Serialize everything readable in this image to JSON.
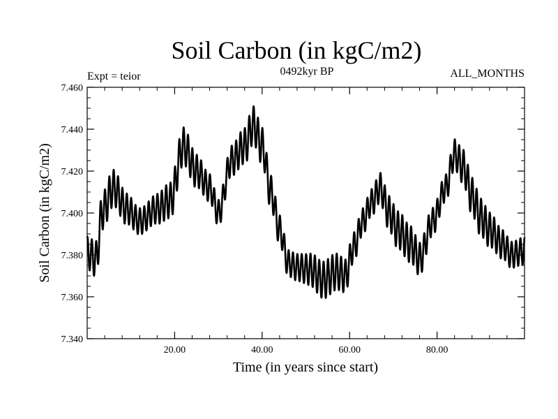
{
  "chart_data": {
    "type": "line",
    "title": "Soil Carbon (in kgC/m2)",
    "subtitle": "0492kyr BP",
    "left_note": "Expt = teior",
    "right_note": "ALL_MONTHS",
    "xlabel": "Time (in years since start)",
    "ylabel": "Soil Carbon (in kgC/m2)",
    "xlim": [
      0,
      100
    ],
    "ylim": [
      7.34,
      7.46
    ],
    "xticks": [
      20,
      40,
      60,
      80
    ],
    "xtick_labels": [
      "20.00",
      "40.00",
      "60.00",
      "80.00"
    ],
    "yticks": [
      7.34,
      7.36,
      7.38,
      7.4,
      7.42,
      7.44,
      7.46
    ],
    "ytick_labels": [
      "7.340",
      "7.360",
      "7.380",
      "7.400",
      "7.420",
      "7.440",
      "7.460"
    ],
    "series": [
      {
        "name": "soil carbon",
        "envelope_x": [
          0,
          2,
          3.5,
          6,
          9,
          12,
          16,
          19,
          22,
          25,
          28,
          30,
          33,
          36,
          38,
          40,
          42,
          44,
          46,
          48,
          51,
          54,
          57,
          59,
          61,
          63,
          65,
          67,
          69,
          71,
          74,
          76,
          79,
          82,
          84,
          86,
          88,
          90,
          92,
          95,
          97,
          100
        ],
        "envelope_y": [
          7.381,
          7.378,
          7.401,
          7.412,
          7.402,
          7.396,
          7.402,
          7.406,
          7.432,
          7.42,
          7.412,
          7.4,
          7.425,
          7.432,
          7.442,
          7.432,
          7.41,
          7.392,
          7.376,
          7.374,
          7.373,
          7.368,
          7.372,
          7.37,
          7.384,
          7.396,
          7.405,
          7.412,
          7.4,
          7.392,
          7.385,
          7.378,
          7.396,
          7.412,
          7.428,
          7.422,
          7.408,
          7.398,
          7.392,
          7.385,
          7.38,
          7.382
        ],
        "oscillation_period_years": 1,
        "oscillation_amplitude": 0.009
      }
    ]
  }
}
